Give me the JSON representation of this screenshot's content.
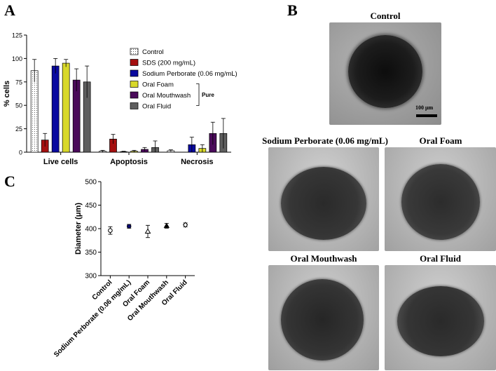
{
  "panels": {
    "a": "A",
    "b": "B",
    "c": "C"
  },
  "colors": {
    "control": "#f2f2f2",
    "sds": "#a50f0f",
    "perborate": "#0a0aa0",
    "foam": "#d8d82a",
    "mouthwash": "#4a0a5a",
    "fluid": "#5e5e5e"
  },
  "chart_data": [
    {
      "type": "bar",
      "ylabel": "% cells",
      "xlabel": "",
      "ylim": [
        0,
        125
      ],
      "yticks": [
        "0",
        "25",
        "50",
        "75",
        "100",
        "125"
      ],
      "categories": [
        "Live cells",
        "Apoptosis",
        "Necrosis"
      ],
      "legend_placement": "right",
      "pure_label": "Pure",
      "series": [
        {
          "name": "Control",
          "values": [
            87,
            1,
            1.5
          ],
          "errors": [
            12,
            1,
            1
          ]
        },
        {
          "name": "SDS (200 mg/mL)",
          "values": [
            13,
            14,
            0
          ],
          "errors": [
            7,
            5,
            0
          ]
        },
        {
          "name": "Sodium Perborate (0.06 mg/mL)",
          "values": [
            92,
            0.5,
            8
          ],
          "errors": [
            8,
            0.5,
            8
          ]
        },
        {
          "name": "Oral Foam",
          "values": [
            95,
            1,
            4
          ],
          "errors": [
            4,
            1,
            4
          ]
        },
        {
          "name": "Oral Mouthwash",
          "values": [
            77,
            3,
            20
          ],
          "errors": [
            12,
            2,
            12
          ]
        },
        {
          "name": "Oral Fluid",
          "values": [
            75,
            5,
            20
          ],
          "errors": [
            17,
            7,
            16
          ]
        }
      ]
    },
    {
      "type": "scatter",
      "ylabel": "Diameter (μm)",
      "xlabel": "",
      "ylim": [
        300,
        500
      ],
      "yticks": [
        "300",
        "350",
        "400",
        "450",
        "500"
      ],
      "categories": [
        "Control",
        "Sodium Perborate (0.06 mg/mL)",
        "Oral Foam",
        "Oral Mouthwash",
        "Oral Fluid"
      ],
      "values": [
        396,
        405,
        394,
        406,
        408
      ],
      "errors": [
        8,
        4,
        13,
        5,
        4
      ],
      "markers": [
        "open-circle",
        "filled-circle",
        "open-triangle",
        "filled-triangle",
        "open-diamond"
      ]
    }
  ],
  "micrographs": [
    {
      "title": "Control",
      "scale_bar": "100 μm"
    },
    {
      "title": "Sodium Perborate (0.06 mg/mL)"
    },
    {
      "title": "Oral Foam"
    },
    {
      "title": "Oral Mouthwash"
    },
    {
      "title": "Oral Fluid"
    }
  ]
}
